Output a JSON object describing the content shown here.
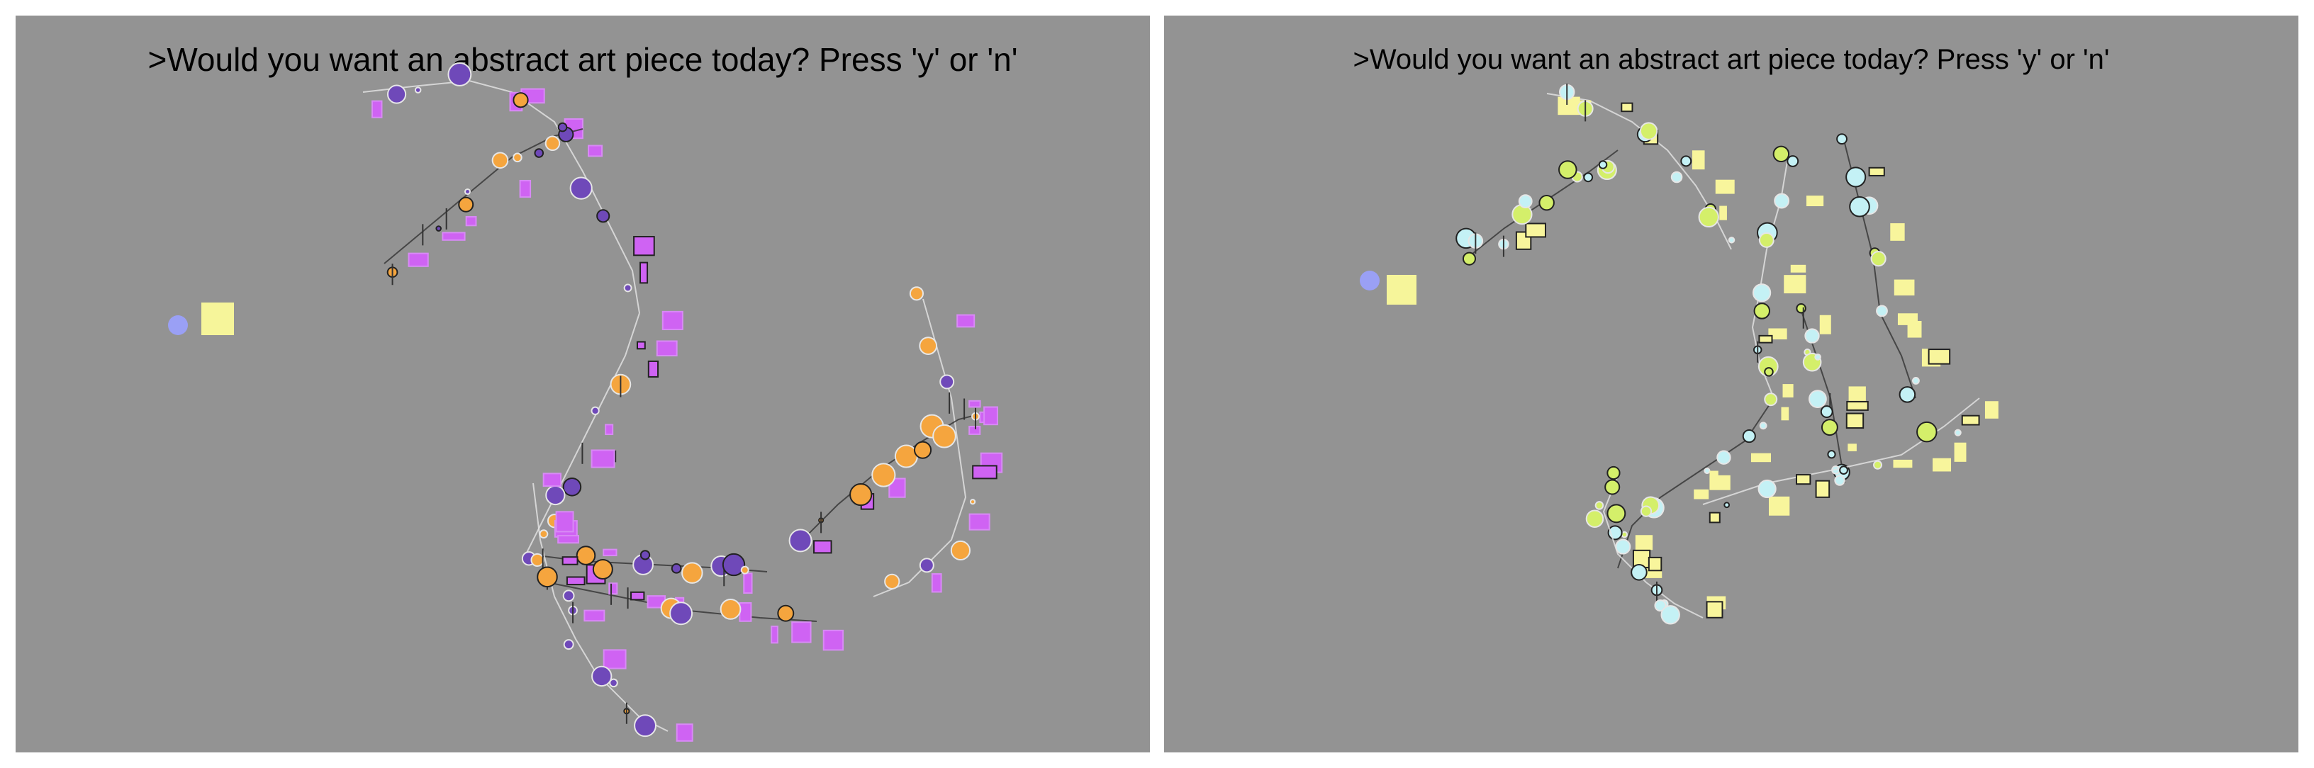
{
  "panels": [
    {
      "prompt_text": ">Would you want an abstract art piece today? Press 'y' or 'n'",
      "palette": {
        "swatch_circle": "#9aa0f5",
        "swatch_square": "#f6f59a",
        "circle_primary": "#f5a53e",
        "circle_secondary": "#6f49b9",
        "rect_fill": "#cf63f3",
        "rect_stroke": "#d88af5",
        "line_light": "#e6e6e6",
        "line_dark": "#333333",
        "outline": "#222222"
      }
    },
    {
      "prompt_text": ">Would you want an abstract art piece today? Press 'y' or 'n'",
      "palette": {
        "swatch_circle": "#9aa0f5",
        "swatch_square": "#f6f59a",
        "circle_primary": "#c4f1f5",
        "circle_secondary": "#d4ef6a",
        "rect_fill": "#f8f59c",
        "rect_stroke": "#f8f59c",
        "line_light": "#e6e6e6",
        "line_dark": "#333333",
        "outline": "#222222"
      }
    }
  ]
}
